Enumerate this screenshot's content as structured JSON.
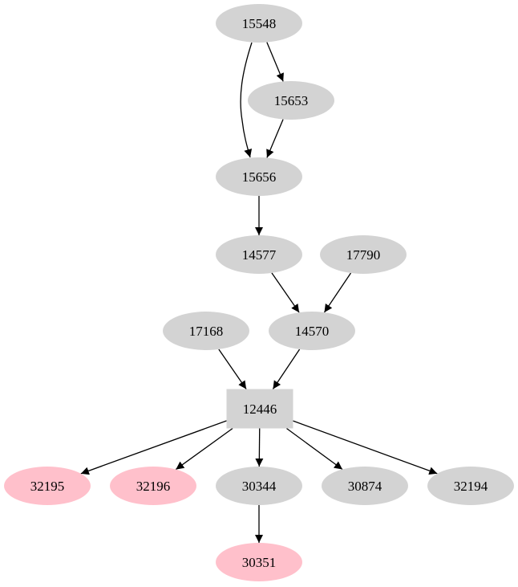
{
  "colors": {
    "default_fill": "#d3d3d3",
    "highlight_fill": "#ffc0cb",
    "edge": "#000000"
  },
  "nodes": [
    {
      "id": "15548",
      "label": "15548",
      "shape": "ellipse",
      "fill": "#d3d3d3"
    },
    {
      "id": "15653",
      "label": "15653",
      "shape": "ellipse",
      "fill": "#d3d3d3"
    },
    {
      "id": "15656",
      "label": "15656",
      "shape": "ellipse",
      "fill": "#d3d3d3"
    },
    {
      "id": "14577",
      "label": "14577",
      "shape": "ellipse",
      "fill": "#d3d3d3"
    },
    {
      "id": "17790",
      "label": "17790",
      "shape": "ellipse",
      "fill": "#d3d3d3"
    },
    {
      "id": "17168",
      "label": "17168",
      "shape": "ellipse",
      "fill": "#d3d3d3"
    },
    {
      "id": "14570",
      "label": "14570",
      "shape": "ellipse",
      "fill": "#d3d3d3"
    },
    {
      "id": "12446",
      "label": "12446",
      "shape": "box",
      "fill": "#d3d3d3"
    },
    {
      "id": "32195",
      "label": "32195",
      "shape": "ellipse",
      "fill": "#ffc0cb"
    },
    {
      "id": "32196",
      "label": "32196",
      "shape": "ellipse",
      "fill": "#ffc0cb"
    },
    {
      "id": "30344",
      "label": "30344",
      "shape": "ellipse",
      "fill": "#d3d3d3"
    },
    {
      "id": "30874",
      "label": "30874",
      "shape": "ellipse",
      "fill": "#d3d3d3"
    },
    {
      "id": "32194",
      "label": "32194",
      "shape": "ellipse",
      "fill": "#d3d3d3"
    },
    {
      "id": "30351",
      "label": "30351",
      "shape": "ellipse",
      "fill": "#ffc0cb"
    }
  ],
  "edges": [
    {
      "from": "15548",
      "to": "15653"
    },
    {
      "from": "15548",
      "to": "15656"
    },
    {
      "from": "15653",
      "to": "15656"
    },
    {
      "from": "15656",
      "to": "14577"
    },
    {
      "from": "14577",
      "to": "14570"
    },
    {
      "from": "17790",
      "to": "14570"
    },
    {
      "from": "17168",
      "to": "12446"
    },
    {
      "from": "14570",
      "to": "12446"
    },
    {
      "from": "12446",
      "to": "32195"
    },
    {
      "from": "12446",
      "to": "32196"
    },
    {
      "from": "12446",
      "to": "30344"
    },
    {
      "from": "12446",
      "to": "30874"
    },
    {
      "from": "12446",
      "to": "32194"
    },
    {
      "from": "30344",
      "to": "30351"
    }
  ]
}
